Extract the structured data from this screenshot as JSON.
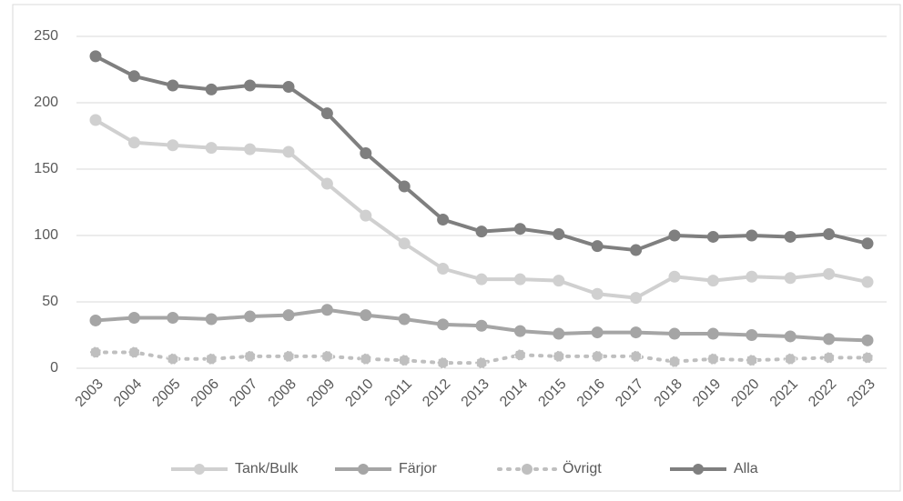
{
  "chart_data": {
    "type": "line",
    "x": [
      "2003",
      "2004",
      "2005",
      "2006",
      "2007",
      "2008",
      "2009",
      "2010",
      "2011",
      "2012",
      "2013",
      "2014",
      "2015",
      "2016",
      "2017",
      "2018",
      "2019",
      "2020",
      "2021",
      "2022",
      "2023"
    ],
    "series": [
      {
        "name": "Tank/Bulk",
        "color": "#d0d0d0",
        "dashed": false,
        "values": [
          187,
          170,
          168,
          166,
          165,
          163,
          139,
          115,
          94,
          75,
          67,
          67,
          66,
          56,
          53,
          69,
          66,
          69,
          68,
          71,
          65
        ]
      },
      {
        "name": "Färjor",
        "color": "#a5a5a5",
        "dashed": false,
        "values": [
          36,
          38,
          38,
          37,
          39,
          40,
          44,
          40,
          37,
          33,
          32,
          28,
          26,
          27,
          27,
          26,
          26,
          25,
          24,
          22,
          21
        ]
      },
      {
        "name": "Övrigt",
        "color": "#bfbfbf",
        "dashed": true,
        "values": [
          12,
          12,
          7,
          7,
          9,
          9,
          9,
          7,
          6,
          4,
          4,
          10,
          9,
          9,
          9,
          5,
          7,
          6,
          7,
          8,
          8
        ]
      },
      {
        "name": "Alla",
        "color": "#7f7f7f",
        "dashed": false,
        "values": [
          235,
          220,
          213,
          210,
          213,
          212,
          192,
          162,
          137,
          112,
          103,
          105,
          101,
          92,
          89,
          100,
          99,
          100,
          99,
          101,
          94
        ]
      }
    ],
    "ylim": [
      0,
      250
    ],
    "yticks": [
      0,
      50,
      100,
      150,
      200,
      250
    ],
    "grid": true,
    "legend": "bottom"
  }
}
